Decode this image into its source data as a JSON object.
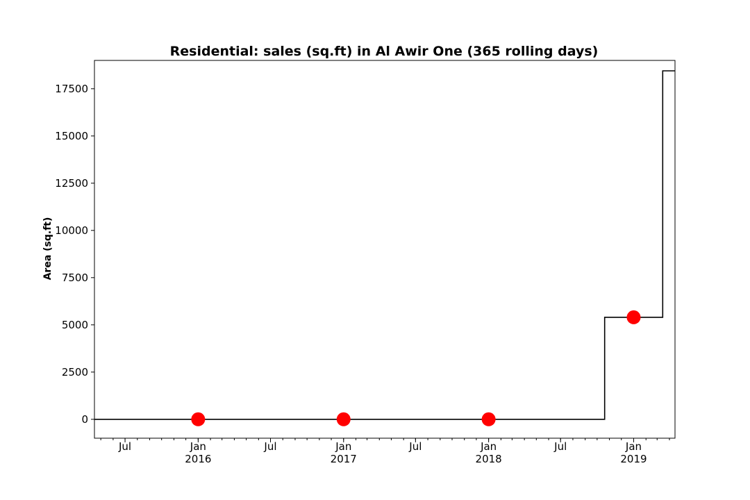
{
  "chart_data": {
    "type": "line",
    "title": "Residential: sales (sq.ft) in Al Awir One (365 rolling days)",
    "xlabel": "",
    "ylabel": "Area (sq.ft)",
    "xlim": [
      "2015-04-15",
      "2019-04-15"
    ],
    "ylim": [
      -1000,
      19000
    ],
    "grid": false,
    "line_color": "#000000",
    "marker_color": "#ff0000",
    "y_ticks": [
      0,
      2500,
      5000,
      7500,
      10000,
      12500,
      15000,
      17500
    ],
    "y_tick_labels": [
      "0",
      "2500",
      "5000",
      "7500",
      "10000",
      "12500",
      "15000",
      "17500"
    ],
    "x_major_ticks": [
      {
        "date": "2015-07-01",
        "label": "Jul",
        "year": ""
      },
      {
        "date": "2016-01-01",
        "label": "Jan",
        "year": "2016"
      },
      {
        "date": "2016-07-01",
        "label": "Jul",
        "year": ""
      },
      {
        "date": "2017-01-01",
        "label": "Jan",
        "year": "2017"
      },
      {
        "date": "2017-07-01",
        "label": "Jul",
        "year": ""
      },
      {
        "date": "2018-01-01",
        "label": "Jan",
        "year": "2018"
      },
      {
        "date": "2018-07-01",
        "label": "Jul",
        "year": ""
      },
      {
        "date": "2019-01-01",
        "label": "Jan",
        "year": "2019"
      }
    ],
    "series": [
      {
        "style": "step",
        "points": [
          {
            "x": "2015-04-15",
            "y": 0
          },
          {
            "x": "2018-10-20",
            "y": 0
          },
          {
            "x": "2018-10-20",
            "y": 5400
          },
          {
            "x": "2019-03-15",
            "y": 5400
          },
          {
            "x": "2019-03-15",
            "y": 18450
          },
          {
            "x": "2019-04-15",
            "y": 18450
          }
        ]
      },
      {
        "style": "markers",
        "points": [
          {
            "x": "2016-01-01",
            "y": 0
          },
          {
            "x": "2017-01-01",
            "y": 0
          },
          {
            "x": "2018-01-01",
            "y": 0
          },
          {
            "x": "2019-01-01",
            "y": 5400
          }
        ]
      }
    ]
  }
}
